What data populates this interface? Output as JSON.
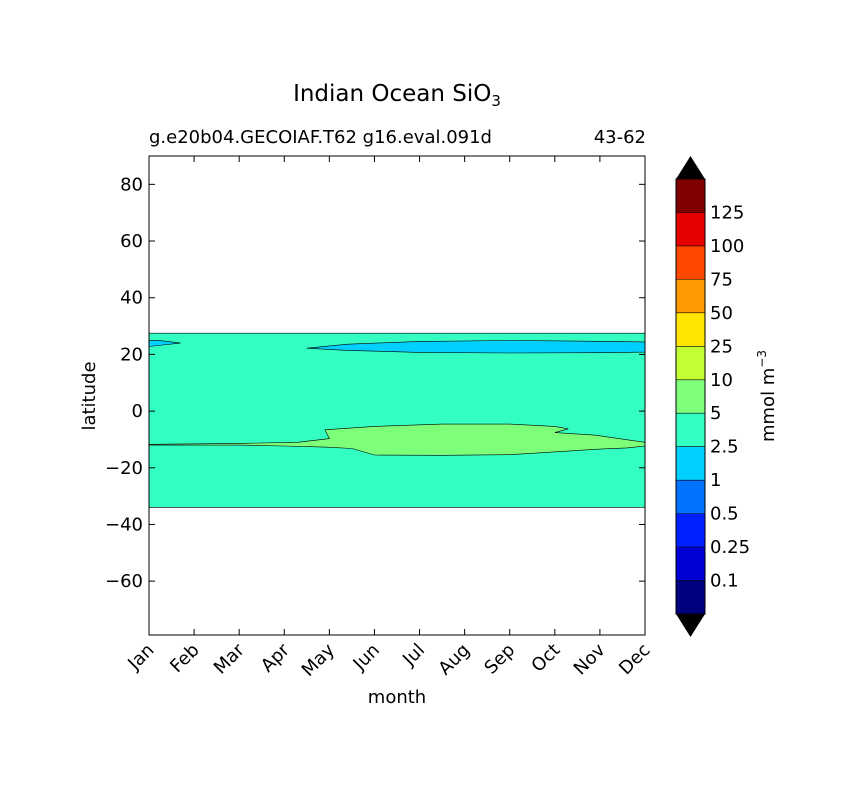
{
  "chart_data": {
    "type": "contourf",
    "title": "Indian Ocean SiO",
    "title_subscript": "3",
    "subtitle_left": "g.e20b04.GECOIAF.T62 g16.eval.091d",
    "subtitle_right": "43-62",
    "xlabel": "month",
    "ylabel": "latitude",
    "x_ticks": [
      "Jan",
      "Feb",
      "Mar",
      "Apr",
      "May",
      "Jun",
      "Jul",
      "Aug",
      "Sep",
      "Oct",
      "Nov",
      "Dec"
    ],
    "y_ticks": [
      80,
      60,
      40,
      20,
      0,
      -20,
      -40,
      -60
    ],
    "y_tick_labels": [
      "80",
      "60",
      "40",
      "20",
      "0",
      "−20",
      "−40",
      "−60"
    ],
    "ylim": [
      -79,
      90
    ],
    "xlim": [
      0,
      11
    ],
    "data_lat_range": [
      -34,
      27.5
    ],
    "colorbar": {
      "label": "mmol m",
      "label_superscript": "−3",
      "levels": [
        0.1,
        0.25,
        0.5,
        1,
        2.5,
        5,
        10,
        25,
        50,
        75,
        100,
        125
      ],
      "level_labels": [
        "0.1",
        "0.25",
        "0.5",
        "1",
        "2.5",
        "5",
        "10",
        "25",
        "50",
        "75",
        "100",
        "125"
      ],
      "colors": [
        "#00007f",
        "#0000d5",
        "#0020ff",
        "#0074ff",
        "#00d0ff",
        "#33ffc3",
        "#7dff7a",
        "#c3ff33",
        "#ffe500",
        "#ff9a00",
        "#ff4700",
        "#e50000",
        "#7f0000"
      ],
      "under_color": "#000000",
      "over_color": "#000000"
    },
    "regions": [
      {
        "name": "background",
        "level": "2.5-5",
        "color": "#33ffc3",
        "lat": [
          -34,
          27.5
        ],
        "month": [
          0,
          11
        ]
      },
      {
        "name": "northern-low-band",
        "level": "1-2.5",
        "color": "#00d0ff",
        "outline": [
          [
            3.5,
            22.2
          ],
          [
            4.4,
            23.6
          ],
          [
            6.0,
            24.6
          ],
          [
            8.0,
            24.9
          ],
          [
            9.5,
            24.7
          ],
          [
            11,
            24.4
          ],
          [
            11,
            20.8
          ],
          [
            10.0,
            20.6
          ],
          [
            8.0,
            20.5
          ],
          [
            6.0,
            20.7
          ],
          [
            4.4,
            21.4
          ]
        ]
      },
      {
        "name": "western-low-sliver",
        "level": "1-2.5",
        "color": "#00d0ff",
        "outline": [
          [
            0,
            25.0
          ],
          [
            0.3,
            24.8
          ],
          [
            0.7,
            24.0
          ],
          [
            0.3,
            23.3
          ],
          [
            0,
            22.8
          ]
        ]
      },
      {
        "name": "southern-high-band",
        "level": "5-10",
        "color": "#7dff7a",
        "outline": [
          [
            0,
            -11.7
          ],
          [
            2.0,
            -11.4
          ],
          [
            3.3,
            -11.0
          ],
          [
            4.0,
            -9.7
          ],
          [
            3.9,
            -6.6
          ],
          [
            5.0,
            -5.4
          ],
          [
            6.5,
            -4.6
          ],
          [
            8.0,
            -4.6
          ],
          [
            9.0,
            -5.4
          ],
          [
            9.3,
            -6.3
          ],
          [
            9.0,
            -7.6
          ],
          [
            9.9,
            -8.5
          ],
          [
            11,
            -11.0
          ],
          [
            11,
            -12.3
          ],
          [
            10.6,
            -13.0
          ],
          [
            10.0,
            -13.4
          ],
          [
            8.0,
            -15.4
          ],
          [
            6.5,
            -15.6
          ],
          [
            5.0,
            -15.5
          ],
          [
            4.5,
            -13.2
          ],
          [
            3.9,
            -12.7
          ],
          [
            3.0,
            -12.3
          ],
          [
            2.0,
            -12.0
          ],
          [
            0,
            -12.0
          ]
        ]
      }
    ]
  }
}
